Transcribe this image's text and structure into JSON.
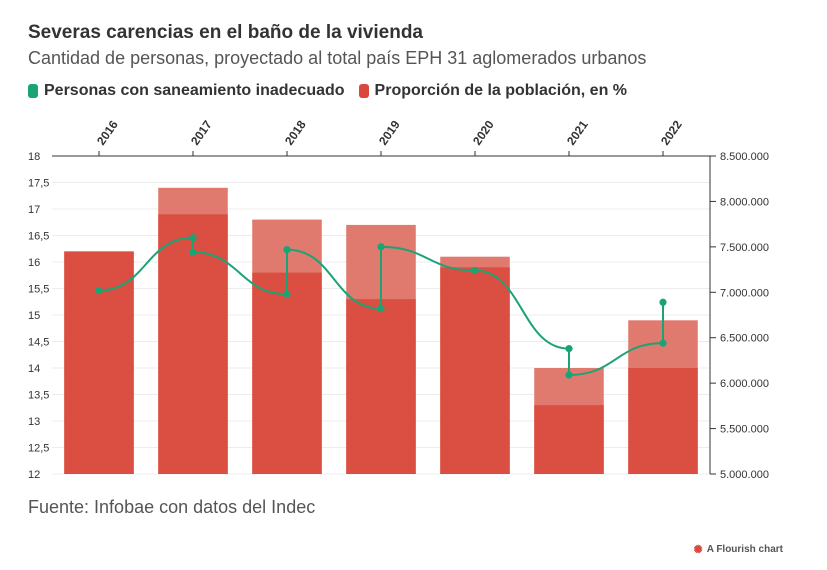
{
  "title": "Severas carencias en el baño de la vivienda",
  "subtitle": "Cantidad de personas, proyectado al total país EPH 31 aglomerados urbanos",
  "legend": {
    "series1": "Personas con saneamiento inadecuado",
    "series2": "Proporción de la población, en %"
  },
  "source": "Fuente: Infobae con datos del Indec",
  "credit": "A Flourish chart",
  "colors": {
    "line": "#1aa375",
    "bar": "#d9483b",
    "bar_light": "#e07a6e"
  },
  "chart_data": {
    "type": "bar",
    "categories": [
      "2016",
      "2017",
      "2018",
      "2019",
      "2020",
      "2021",
      "2022"
    ],
    "left_axis": {
      "label": "",
      "ylim": [
        12,
        18
      ],
      "ticks": [
        "12",
        "12,5",
        "13",
        "13,5",
        "14",
        "14,5",
        "15",
        "15,5",
        "16",
        "16,5",
        "17",
        "17,5",
        "18"
      ]
    },
    "right_axis": {
      "label": "",
      "ylim": [
        5000000,
        8500000
      ],
      "ticks": [
        "5.000.000",
        "5.500.000",
        "6.000.000",
        "6.500.000",
        "7.000.000",
        "7.500.000",
        "8.000.000",
        "8.500.000"
      ]
    },
    "series": [
      {
        "name": "Proporción de la población, en %",
        "kind": "bar",
        "axis": "left",
        "semester_values": [
          [
            16.2,
            16.2
          ],
          [
            17.4,
            16.9
          ],
          [
            16.8,
            15.8
          ],
          [
            16.7,
            15.3
          ],
          [
            16.1,
            15.9
          ],
          [
            14.0,
            13.3
          ],
          [
            14.9,
            14.0
          ]
        ]
      },
      {
        "name": "Personas con saneamiento inadecuado",
        "kind": "line",
        "axis": "right",
        "points": [
          [
            0,
            7020000
          ],
          [
            1,
            7600000
          ],
          [
            1,
            7440000
          ],
          [
            2,
            6980000
          ],
          [
            2,
            7470000
          ],
          [
            3,
            6820000
          ],
          [
            3,
            7500000
          ],
          [
            4,
            7240000
          ],
          [
            5,
            6380000
          ],
          [
            5,
            6090000
          ],
          [
            6,
            6440000
          ],
          [
            6,
            6890000
          ]
        ]
      }
    ]
  }
}
